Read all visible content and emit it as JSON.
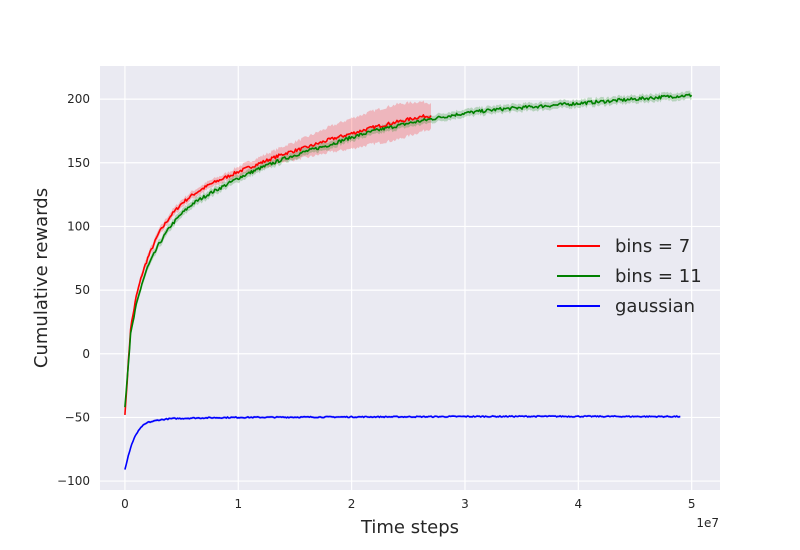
{
  "chart_data": {
    "type": "line",
    "title": "",
    "xlabel": "Time steps",
    "ylabel": "Cumulative rewards",
    "x_offset_label": "1e7",
    "xlim": [
      -0.22,
      5.25
    ],
    "ylim": [
      -107,
      226
    ],
    "x_ticks": [
      0,
      1,
      2,
      3,
      4,
      5
    ],
    "x_tick_labels": [
      "0",
      "1",
      "2",
      "3",
      "4",
      "5"
    ],
    "y_ticks": [
      -100,
      -50,
      0,
      50,
      100,
      150,
      200
    ],
    "y_tick_labels": [
      "−100",
      "−50",
      "0",
      "50",
      "100",
      "150",
      "200"
    ],
    "grid": true,
    "legend_position": "center-right",
    "series": [
      {
        "name": "bins = 7",
        "color": "#ff0000",
        "x": [
          0.0,
          0.05,
          0.1,
          0.15,
          0.2,
          0.3,
          0.4,
          0.5,
          0.6,
          0.75,
          0.9,
          1.0,
          1.2,
          1.4,
          1.6,
          1.8,
          2.0,
          2.2,
          2.4,
          2.6,
          2.7
        ],
        "values": [
          -48,
          20,
          45,
          62,
          75,
          95,
          108,
          118,
          125,
          133,
          139,
          143,
          150,
          157,
          162,
          168,
          173,
          178,
          182,
          186,
          187
        ],
        "band": [
          1,
          3,
          3,
          3,
          3,
          3,
          3,
          3,
          3,
          3,
          3,
          4,
          5,
          6,
          8,
          10,
          12,
          13,
          14,
          12,
          10
        ]
      },
      {
        "name": "bins = 11",
        "color": "#008000",
        "x": [
          0.0,
          0.05,
          0.1,
          0.15,
          0.2,
          0.3,
          0.4,
          0.5,
          0.6,
          0.75,
          0.9,
          1.0,
          1.2,
          1.4,
          1.6,
          1.8,
          2.0,
          2.2,
          2.5,
          2.8,
          3.0,
          3.3,
          3.6,
          3.9,
          4.2,
          4.5,
          4.8,
          5.0
        ],
        "values": [
          -42,
          15,
          38,
          55,
          68,
          86,
          100,
          110,
          118,
          126,
          133,
          138,
          146,
          153,
          159,
          164,
          170,
          175,
          181,
          186,
          189,
          192,
          194,
          196,
          198,
          200,
          202,
          203
        ],
        "band": [
          2,
          3,
          3,
          3,
          3,
          3,
          3,
          3,
          3,
          3,
          3,
          3,
          3,
          3,
          3,
          3,
          3,
          3,
          3,
          3,
          3,
          3,
          3,
          3,
          3,
          3,
          3,
          3
        ]
      },
      {
        "name": "gaussian",
        "color": "#0000ff",
        "x": [
          0.0,
          0.03,
          0.06,
          0.1,
          0.15,
          0.2,
          0.3,
          0.4,
          0.6,
          0.8,
          1.0,
          1.5,
          2.0,
          2.5,
          3.0,
          3.5,
          4.0,
          4.5,
          4.9
        ],
        "values": [
          -91,
          -80,
          -71,
          -63,
          -57,
          -54,
          -52,
          -51,
          -50.5,
          -50.2,
          -50,
          -49.8,
          -49.6,
          -49.5,
          -49.3,
          -49.2,
          -49.2,
          -49.3,
          -49.3
        ],
        "band": [
          1,
          1,
          1,
          1,
          1,
          1,
          1,
          1,
          1,
          1,
          1,
          1,
          1,
          1,
          1,
          1,
          1,
          1,
          1
        ]
      }
    ]
  }
}
